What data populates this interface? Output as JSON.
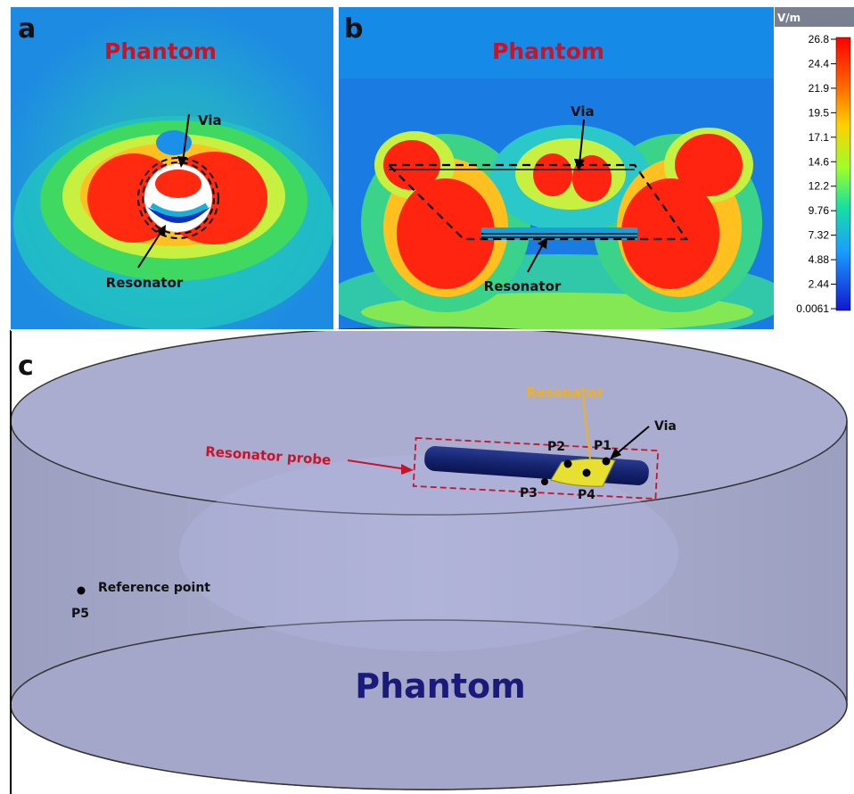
{
  "panels": {
    "a": {
      "label": "a",
      "title": "Phantom",
      "via_label": "Via",
      "resonator_label": "Resonator"
    },
    "b": {
      "label": "b",
      "title": "Phantom",
      "via_label": "Via",
      "resonator_label": "Resonator"
    },
    "c": {
      "label": "c",
      "resonator_label": "Resonator",
      "via_label": "Via",
      "probe_label": "Resonator probe",
      "points": [
        "P1",
        "P2",
        "P3",
        "P4",
        "P5"
      ],
      "reference_label": "Reference point",
      "phantom_label": "Phantom"
    }
  },
  "colorbar": {
    "unit": "V/m",
    "ticks": [
      "26.8",
      "24.4",
      "21.9",
      "19.5",
      "17.1",
      "14.6",
      "12.2",
      "9.76",
      "7.32",
      "4.88",
      "2.44",
      "0.0061"
    ]
  },
  "colors": {
    "field_title": "#c8142a",
    "probe_label": "#c8142a",
    "resonator_label_c": "#f0b020",
    "phantom_label_c": "#1a1a7a",
    "probe_body": "#15246e",
    "resonator_body": "#e8e030",
    "cylinder": "#a9accd"
  }
}
